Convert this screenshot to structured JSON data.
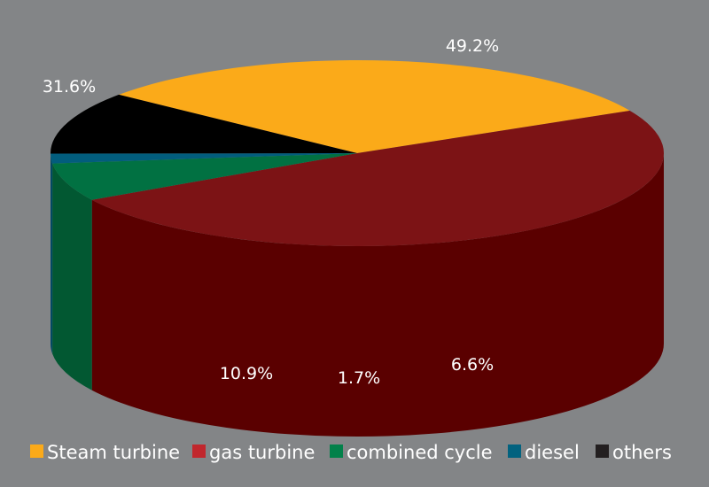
{
  "chart_data": {
    "type": "pie",
    "style": "3d",
    "legend_placement": "bottom",
    "title": "",
    "slices": [
      {
        "name": "Steam turbine",
        "value": 31.6,
        "label": "31.6%",
        "color": "#fbaa19",
        "side_color": "#cc8e14"
      },
      {
        "name": "gas turbine",
        "value": 49.2,
        "label": "49.2%",
        "color": "#7c1315",
        "side_color": "#5a0000"
      },
      {
        "name": "combined cycle",
        "value": 6.6,
        "label": "6.6%",
        "color": "#017142",
        "side_color": "#025832"
      },
      {
        "name": "diesel",
        "value": 1.7,
        "label": "1.7%",
        "color": "#025d7d",
        "side_color": "#024a63"
      },
      {
        "name": "others",
        "value": 10.9,
        "label": "10.9%",
        "color": "#000000",
        "side_color": "#000000"
      }
    ],
    "legend_colors": [
      "#fbaa19",
      "#c1272d",
      "#02814a",
      "#02627f",
      "#231f20"
    ]
  }
}
